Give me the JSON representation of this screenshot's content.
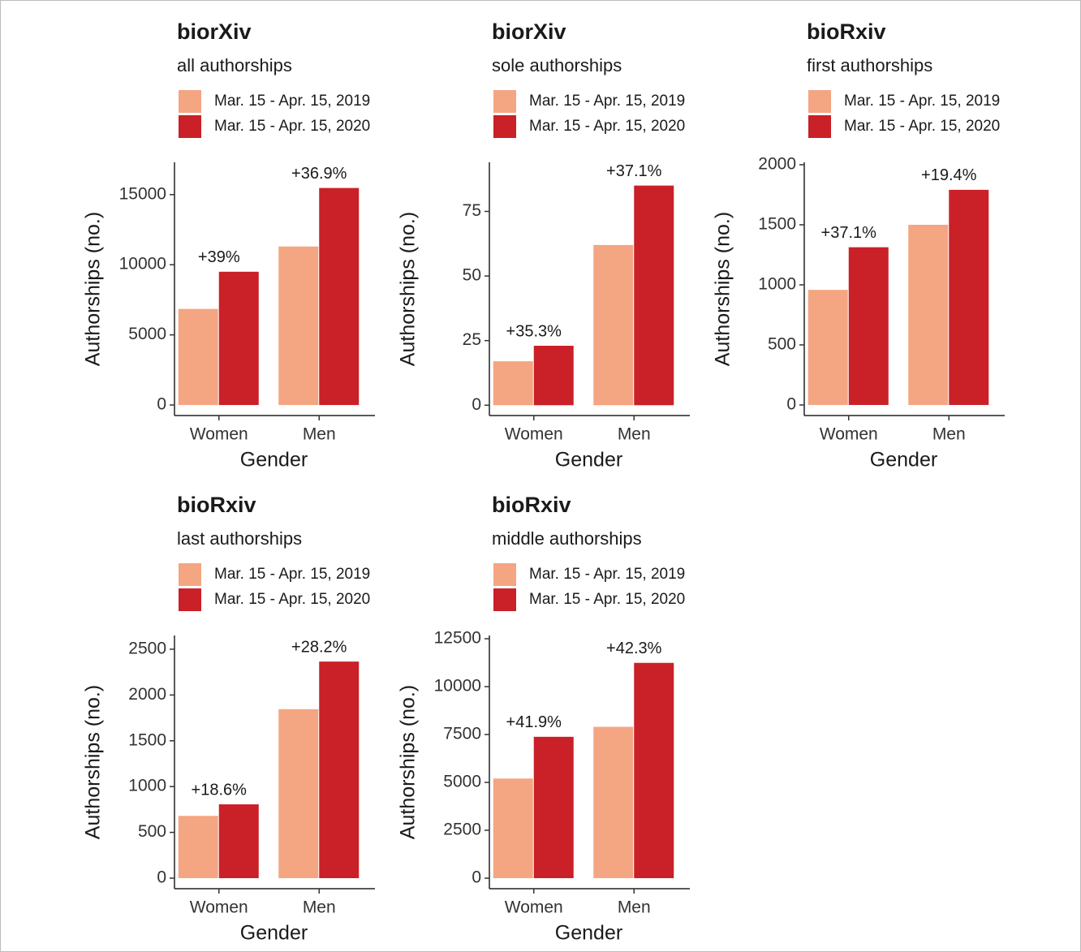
{
  "chart_data": [
    {
      "type": "bar",
      "title": "biorXiv",
      "subtitle": "all authorships",
      "y_label": "Authorships (no.)",
      "x_label": "Gender",
      "categories": [
        "Women",
        "Men"
      ],
      "series": [
        {
          "name": "Mar. 15 - Apr. 15, 2019",
          "color": "#f4a582",
          "values": [
            6850,
            11300
          ]
        },
        {
          "name": "Mar. 15 - Apr. 15, 2020",
          "color": "#ca2027",
          "values": [
            9500,
            15470
          ]
        }
      ],
      "annotations": [
        "+39%",
        "+36.9%"
      ],
      "ylim": [
        -750,
        17300
      ],
      "yticks": [
        0,
        5000,
        10000,
        15000
      ]
    },
    {
      "type": "bar",
      "title": "biorXiv",
      "subtitle": "sole authorships",
      "y_label": "Authorships (no.)",
      "x_label": "Gender",
      "categories": [
        "Women",
        "Men"
      ],
      "series": [
        {
          "name": "Mar. 15 - Apr. 15, 2019",
          "color": "#f4a582",
          "values": [
            17,
            62
          ]
        },
        {
          "name": "Mar. 15 - Apr. 15, 2020",
          "color": "#ca2027",
          "values": [
            23,
            85
          ]
        }
      ],
      "annotations": [
        "+35.3%",
        "+37.1%"
      ],
      "ylim": [
        -4,
        94
      ],
      "yticks": [
        0,
        25,
        50,
        75
      ]
    },
    {
      "type": "bar",
      "title": "bioRxiv",
      "subtitle": "first authorships",
      "y_label": "Authorships (no.)",
      "x_label": "Gender",
      "categories": [
        "Women",
        "Men"
      ],
      "series": [
        {
          "name": "Mar. 15 - Apr. 15, 2019",
          "color": "#f4a582",
          "values": [
            958,
            1500
          ]
        },
        {
          "name": "Mar. 15 - Apr. 15, 2020",
          "color": "#ca2027",
          "values": [
            1313,
            1791
          ]
        }
      ],
      "annotations": [
        "+37.1%",
        "+19.4%"
      ],
      "ylim": [
        -88,
        2020
      ],
      "yticks": [
        0,
        500,
        1000,
        1500,
        2000
      ]
    },
    {
      "type": "bar",
      "title": "bioRxiv",
      "subtitle": "last authorships",
      "y_label": "Authorships (no.)",
      "x_label": "Gender",
      "categories": [
        "Women",
        "Men"
      ],
      "series": [
        {
          "name": "Mar. 15 - Apr. 15, 2019",
          "color": "#f4a582",
          "values": [
            680,
            1845
          ]
        },
        {
          "name": "Mar. 15 - Apr. 15, 2020",
          "color": "#ca2027",
          "values": [
            806,
            2365
          ]
        }
      ],
      "annotations": [
        "+18.6%",
        "+28.2%"
      ],
      "ylim": [
        -115,
        2650
      ],
      "yticks": [
        0,
        500,
        1000,
        1500,
        2000,
        2500
      ]
    },
    {
      "type": "bar",
      "title": "bioRxiv",
      "subtitle": "middle authorships",
      "y_label": "Authorships (no.)",
      "x_label": "Gender",
      "categories": [
        "Women",
        "Men"
      ],
      "series": [
        {
          "name": "Mar. 15 - Apr. 15, 2019",
          "color": "#f4a582",
          "values": [
            5200,
            7900
          ]
        },
        {
          "name": "Mar. 15 - Apr. 15, 2020",
          "color": "#ca2027",
          "values": [
            7380,
            11240
          ]
        }
      ],
      "annotations": [
        "+41.9%",
        "+42.3%"
      ],
      "ylim": [
        -550,
        12670
      ],
      "yticks": [
        0,
        2500,
        5000,
        7500,
        10000,
        12500
      ]
    }
  ]
}
